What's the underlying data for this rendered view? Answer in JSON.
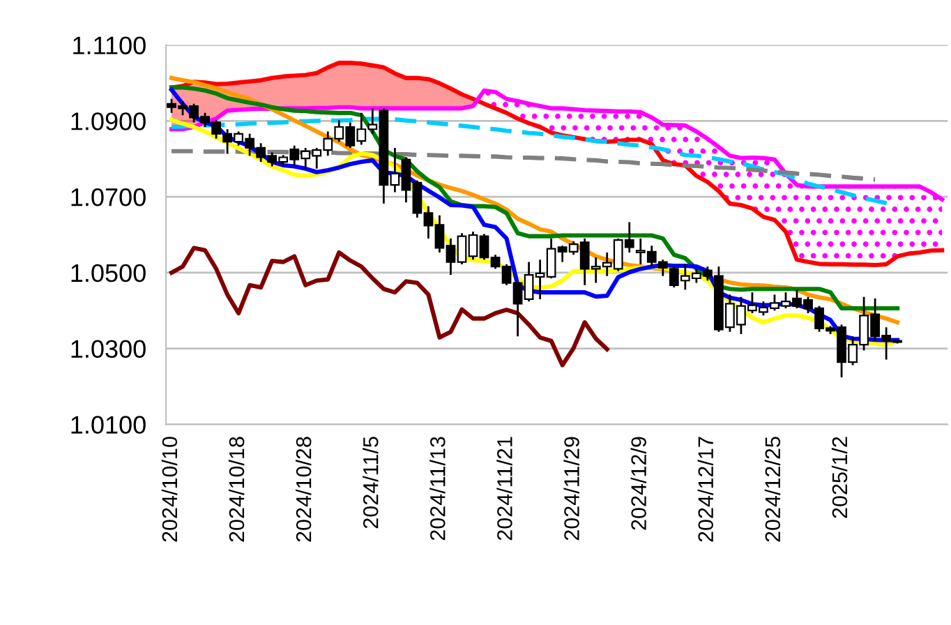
{
  "chart_data": {
    "type": "candlestick",
    "categories": [
      "2024/10/10",
      null,
      null,
      null,
      null,
      null,
      "2024/10/18",
      null,
      null,
      null,
      null,
      null,
      "2024/10/28",
      null,
      null,
      null,
      null,
      null,
      "2024/11/5",
      null,
      null,
      null,
      null,
      null,
      "2024/11/13",
      null,
      null,
      null,
      null,
      null,
      "2024/11/21",
      null,
      null,
      null,
      null,
      null,
      "2024/11/29",
      null,
      null,
      null,
      null,
      null,
      "2024/12/9",
      null,
      null,
      null,
      null,
      null,
      "2024/12/17",
      null,
      null,
      null,
      null,
      null,
      "2024/12/25",
      null,
      null,
      null,
      null,
      null,
      "2025/1/2",
      null,
      null,
      null,
      null,
      null,
      null,
      null,
      null,
      null
    ],
    "ohlc": [
      [
        1.0945,
        1.0958,
        1.0921,
        1.0936
      ],
      [
        1.0939,
        1.0952,
        1.0915,
        1.0933
      ],
      [
        1.0939,
        1.0945,
        1.0896,
        1.0909
      ],
      [
        1.0911,
        1.0921,
        1.0884,
        1.0896
      ],
      [
        1.0896,
        1.0902,
        1.0853,
        1.0866
      ],
      [
        1.0866,
        1.0878,
        1.0813,
        1.0845
      ],
      [
        1.0845,
        1.0872,
        1.0835,
        1.0866
      ],
      [
        1.0853,
        1.0866,
        1.0808,
        1.0829
      ],
      [
        1.0829,
        1.0841,
        1.0792,
        1.0804
      ],
      [
        1.0808,
        1.0817,
        1.078,
        1.0792
      ],
      [
        1.0792,
        1.081,
        1.078,
        1.0804
      ],
      [
        1.0825,
        1.0835,
        1.0783,
        1.0798
      ],
      [
        1.0801,
        1.0829,
        1.0774,
        1.082
      ],
      [
        1.0808,
        1.0829,
        1.0774,
        1.0823
      ],
      [
        1.0823,
        1.0872,
        1.0808,
        1.0853
      ],
      [
        1.0853,
        1.0902,
        1.0845,
        1.0884
      ],
      [
        1.0884,
        1.0896,
        1.0829,
        1.0835
      ],
      [
        1.0847,
        1.0921,
        1.0837,
        1.0878
      ],
      [
        1.0878,
        1.0933,
        1.0866,
        1.089
      ],
      [
        1.0927,
        1.0933,
        1.0682,
        1.0731
      ],
      [
        1.0731,
        1.0829,
        1.0712,
        1.0761
      ],
      [
        1.0798,
        1.0804,
        1.0685,
        1.0718
      ],
      [
        1.0737,
        1.0743,
        1.0645,
        1.0657
      ],
      [
        1.0657,
        1.0675,
        1.059,
        1.0624
      ],
      [
        1.0626,
        1.0651,
        1.0553,
        1.0565
      ],
      [
        1.0571,
        1.059,
        1.0494,
        1.0528
      ],
      [
        1.0528,
        1.0604,
        1.0522,
        1.0596
      ],
      [
        1.0543,
        1.0608,
        1.0534,
        1.0599
      ],
      [
        1.0596,
        1.0602,
        1.0534,
        1.054
      ],
      [
        1.054,
        1.0547,
        1.051,
        1.0516
      ],
      [
        1.0516,
        1.0522,
        1.0467,
        1.0473
      ],
      [
        1.0473,
        1.0473,
        1.0332,
        1.0418
      ],
      [
        1.043,
        1.0528,
        1.0424,
        1.0494
      ],
      [
        1.0489,
        1.0534,
        1.043,
        1.0498
      ],
      [
        1.0489,
        1.059,
        1.0485,
        1.0563
      ],
      [
        1.0567,
        1.0571,
        1.0528,
        1.0555
      ],
      [
        1.0555,
        1.0583,
        1.0547,
        1.0575
      ],
      [
        1.058,
        1.059,
        1.0467,
        1.051
      ],
      [
        1.051,
        1.054,
        1.0473,
        1.0516
      ],
      [
        1.0516,
        1.0553,
        1.0491,
        1.0526
      ],
      [
        1.051,
        1.059,
        1.0504,
        1.0586
      ],
      [
        1.0586,
        1.0633,
        1.0553,
        1.0567
      ],
      [
        1.0553,
        1.059,
        1.0522,
        1.0558
      ],
      [
        1.0555,
        1.0571,
        1.0516,
        1.0528
      ],
      [
        1.0528,
        1.0534,
        1.0491,
        1.0513
      ],
      [
        1.051,
        1.0516,
        1.0461,
        1.0467
      ],
      [
        1.0479,
        1.0522,
        1.0455,
        1.0491
      ],
      [
        1.0485,
        1.051,
        1.0473,
        1.0498
      ],
      [
        1.0506,
        1.0516,
        1.0479,
        1.0491
      ],
      [
        1.0491,
        1.0516,
        1.0344,
        1.035
      ],
      [
        1.0356,
        1.0442,
        1.0344,
        1.0418
      ],
      [
        1.0363,
        1.0436,
        1.0338,
        1.0412
      ],
      [
        1.04,
        1.0448,
        1.0393,
        1.0414
      ],
      [
        1.0396,
        1.0424,
        1.0387,
        1.0408
      ],
      [
        1.0406,
        1.0442,
        1.04,
        1.042
      ],
      [
        1.0412,
        1.0448,
        1.0406,
        1.0424
      ],
      [
        1.0432,
        1.0455,
        1.0406,
        1.0412
      ],
      [
        1.0428,
        1.0436,
        1.0393,
        1.0406
      ],
      [
        1.0406,
        1.0412,
        1.0344,
        1.0353
      ],
      [
        1.0354,
        1.0359,
        1.0338,
        1.0347
      ],
      [
        1.0356,
        1.0363,
        1.0224,
        1.0264
      ],
      [
        1.0264,
        1.0332,
        1.0256,
        1.031
      ],
      [
        1.031,
        1.0436,
        1.0295,
        1.0387
      ],
      [
        1.039,
        1.0432,
        1.032,
        1.0332
      ],
      [
        1.0334,
        1.0356,
        1.0271,
        1.0322
      ],
      [
        1.032,
        1.0322,
        1.0313,
        1.0317
      ],
      null,
      null,
      null,
      null
    ],
    "series": [
      {
        "type": "line",
        "color": "#ff0000",
        "line_style": "solid",
        "lower": [
          1.0878,
          1.0878,
          1.0884,
          1.0896,
          1.0906,
          1.0927,
          1.0929,
          1.0931,
          1.0932,
          1.0932,
          1.0933,
          1.0933,
          1.0933,
          1.0934,
          1.0934,
          1.0936,
          1.0936,
          1.0933,
          1.0933,
          1.0933,
          1.0933,
          1.0933,
          1.0933,
          1.0933,
          1.0933,
          1.0933,
          1.0933,
          1.0939,
          null,
          null,
          null,
          null,
          null,
          null,
          null,
          null,
          null,
          null,
          null,
          null,
          null,
          null,
          null,
          null,
          null,
          null,
          null,
          null,
          null,
          null,
          null,
          null,
          null,
          null,
          null,
          null,
          null,
          null,
          null,
          null,
          null,
          null,
          null,
          null,
          null,
          null,
          null,
          null,
          null,
          null
        ],
        "upper": [
          1.0988,
          1.0992,
          1.1003,
          1.1001,
          1.0997,
          1.0998,
          1.1001,
          1.1004,
          1.1007,
          1.1013,
          1.1017,
          1.1019,
          1.1021,
          1.1026,
          1.1041,
          1.1053,
          1.1053,
          1.1051,
          1.1046,
          1.1041,
          1.1025,
          1.1013,
          1.1013,
          1.101,
          1.0999,
          1.0985,
          1.097,
          1.0958,
          null,
          null,
          null,
          null,
          null,
          null,
          null,
          null,
          null,
          null,
          null,
          null,
          null,
          null,
          null,
          null,
          null,
          null,
          null,
          null,
          null,
          null,
          null,
          null,
          null,
          null,
          null,
          null,
          null,
          null,
          null,
          null,
          null,
          null,
          null,
          null,
          null,
          null,
          null,
          null,
          null,
          null
        ],
        "values": [
          1.0988,
          1.0992,
          1.1003,
          1.1001,
          1.0997,
          1.0998,
          1.1001,
          1.1004,
          1.1007,
          1.1013,
          1.1017,
          1.1019,
          1.1021,
          1.1026,
          1.1041,
          1.1053,
          1.1053,
          1.1051,
          1.1046,
          1.1041,
          1.1025,
          1.1013,
          1.1013,
          1.101,
          1.0999,
          1.0985,
          1.097,
          1.0958,
          1.0945,
          1.0933,
          1.0921,
          1.0906,
          1.0894,
          1.0884,
          1.0869,
          1.0862,
          1.0857,
          1.0852,
          1.0847,
          1.0845,
          1.0847,
          1.085,
          1.085,
          1.0839,
          1.0796,
          1.0786,
          1.0783,
          1.0755,
          1.0739,
          1.0715,
          1.0682,
          1.0678,
          1.0669,
          1.0647,
          1.0639,
          1.0608,
          1.0534,
          1.0528,
          1.0523,
          1.0522,
          1.0522,
          1.0521,
          1.0521,
          1.052,
          1.0522,
          1.0543,
          1.055,
          1.0553,
          1.0558,
          1.0559
        ]
      },
      {
        "type": "line",
        "color": "#ff00ff",
        "line_style": "solid",
        "lower": [
          null,
          null,
          null,
          null,
          null,
          null,
          null,
          null,
          null,
          null,
          null,
          null,
          null,
          null,
          null,
          null,
          null,
          null,
          null,
          null,
          null,
          null,
          null,
          null,
          null,
          null,
          null,
          null,
          1.098,
          1.0976,
          1.0958,
          1.0952,
          1.0945,
          1.0939,
          1.0933,
          1.0933,
          1.0931,
          1.0928,
          1.0927,
          1.0926,
          1.0925,
          1.0925,
          1.0923,
          1.0909,
          1.089,
          1.0889,
          1.0888,
          1.0872,
          1.0853,
          1.0831,
          1.0808,
          1.0802,
          1.0803,
          1.0802,
          1.0798,
          1.0761,
          1.0731,
          1.0727,
          1.0727,
          1.0727,
          1.0727,
          1.0727,
          1.0727,
          1.0727,
          1.0727,
          1.0727,
          1.0727,
          1.0727,
          1.0712,
          1.0693
        ],
        "upper": [
          null,
          null,
          null,
          null,
          null,
          null,
          null,
          null,
          null,
          null,
          null,
          null,
          null,
          null,
          null,
          null,
          null,
          null,
          null,
          null,
          null,
          null,
          null,
          null,
          null,
          null,
          null,
          null,
          1.0945,
          1.0933,
          1.0921,
          1.0906,
          1.0894,
          1.0884,
          1.0869,
          1.0862,
          1.0857,
          1.0852,
          1.0847,
          1.0845,
          1.0847,
          1.085,
          1.085,
          1.0839,
          1.0796,
          1.0786,
          1.0783,
          1.0755,
          1.0739,
          1.0715,
          1.0682,
          1.0678,
          1.0669,
          1.0647,
          1.0639,
          1.0608,
          1.0534,
          1.0528,
          1.0523,
          1.0522,
          1.0522,
          1.0521,
          1.0521,
          1.052,
          1.0522,
          1.0543,
          1.055,
          1.0553,
          1.0558,
          1.0559
        ],
        "values": [
          1.0878,
          1.0878,
          1.0884,
          1.0896,
          1.0906,
          1.0927,
          1.0929,
          1.0931,
          1.0932,
          1.0932,
          1.0933,
          1.0933,
          1.0933,
          1.0934,
          1.0934,
          1.0936,
          1.0936,
          1.0933,
          1.0933,
          1.0933,
          1.0933,
          1.0933,
          1.0933,
          1.0933,
          1.0933,
          1.0933,
          1.0933,
          1.0939,
          1.098,
          1.0976,
          1.0958,
          1.0952,
          1.0945,
          1.0939,
          1.0933,
          1.0933,
          1.0931,
          1.0928,
          1.0927,
          1.0926,
          1.0925,
          1.0925,
          1.0923,
          1.0909,
          1.089,
          1.0889,
          1.0888,
          1.0872,
          1.0853,
          1.0831,
          1.0808,
          1.0802,
          1.0803,
          1.0802,
          1.0798,
          1.0761,
          1.0731,
          1.0727,
          1.0727,
          1.0727,
          1.0727,
          1.0727,
          1.0727,
          1.0727,
          1.0727,
          1.0727,
          1.0727,
          1.0727,
          1.0712,
          1.0693
        ]
      },
      {
        "type": "line",
        "color": "#00ccff",
        "line_style": "dashed",
        "values": [
          1.0884,
          1.0885,
          1.0887,
          1.0888,
          1.0889,
          1.089,
          1.0891,
          1.0893,
          1.0894,
          1.0895,
          1.0896,
          1.0898,
          1.0899,
          1.09,
          1.0901,
          1.0901,
          1.0902,
          1.0905,
          1.0905,
          1.0905,
          1.0904,
          1.0901,
          1.0899,
          1.0896,
          1.0893,
          1.089,
          1.0887,
          1.0884,
          1.088,
          1.0878,
          1.0874,
          1.0872,
          1.0868,
          1.0866,
          1.0862,
          1.0858,
          1.0855,
          1.0851,
          1.0847,
          1.0845,
          1.0841,
          1.0837,
          1.0835,
          1.083,
          1.0825,
          1.0818,
          1.081,
          1.0808,
          1.0804,
          1.0799,
          1.0793,
          1.0788,
          1.078,
          1.0772,
          1.0765,
          1.0759,
          1.0747,
          1.0734,
          1.0727,
          1.072,
          1.0712,
          1.0704,
          1.0696,
          1.069,
          1.0683,
          1.0675,
          null,
          null,
          null,
          null
        ]
      },
      {
        "type": "line",
        "color": "#808080",
        "line_style": "dashed",
        "values": [
          1.082,
          1.082,
          1.082,
          1.0819,
          1.0819,
          1.0819,
          1.0819,
          1.0818,
          1.0818,
          1.0818,
          1.0818,
          1.0817,
          1.0817,
          1.0817,
          1.0817,
          1.0815,
          1.0815,
          1.0814,
          1.0814,
          1.0813,
          1.0812,
          1.0812,
          1.081,
          1.081,
          1.0809,
          1.0808,
          1.0808,
          1.0807,
          1.0806,
          1.0806,
          1.0804,
          1.0803,
          1.0803,
          1.0802,
          1.0802,
          1.0801,
          1.0799,
          1.0797,
          1.0796,
          1.0793,
          1.0792,
          1.0791,
          1.0788,
          1.0787,
          1.0786,
          1.0783,
          1.0782,
          1.0781,
          1.0779,
          1.0777,
          1.0776,
          1.0774,
          1.0771,
          1.0769,
          1.0766,
          1.0764,
          1.0761,
          1.076,
          1.0758,
          1.0755,
          1.0753,
          1.075,
          1.0748,
          1.0745,
          null,
          null,
          null,
          null,
          null,
          null
        ]
      },
      {
        "type": "line",
        "color": "#800000",
        "line_style": "solid",
        "values": [
          1.05,
          1.0516,
          1.0565,
          1.0559,
          1.051,
          1.0442,
          1.0393,
          1.0467,
          1.0461,
          1.0531,
          1.0528,
          1.0543,
          1.0467,
          1.0479,
          1.0482,
          1.0553,
          1.0532,
          1.0516,
          1.0485,
          1.0457,
          1.0448,
          1.0477,
          1.0473,
          1.0442,
          1.0329,
          1.0344,
          1.0403,
          1.0379,
          1.0379,
          1.0393,
          1.0402,
          1.0393,
          1.0363,
          1.0329,
          1.032,
          1.0256,
          1.0301,
          1.0369,
          1.0326,
          1.0298,
          null,
          null,
          null,
          null,
          null,
          null,
          null,
          null,
          null,
          null,
          null,
          null,
          null,
          null,
          null,
          null,
          null,
          null,
          null,
          null,
          null,
          null,
          null,
          null,
          null,
          null,
          null,
          null,
          null,
          null
        ]
      },
      {
        "type": "line",
        "color": "#ff9900",
        "line_style": "solid",
        "values": [
          1.1013,
          1.1007,
          1.1002,
          1.0994,
          1.0986,
          1.0976,
          1.0966,
          1.0957,
          1.0944,
          1.0931,
          1.0916,
          1.0901,
          1.0887,
          1.0872,
          1.0857,
          1.0844,
          1.0825,
          1.081,
          1.0803,
          1.0793,
          1.0785,
          1.0771,
          1.0756,
          1.0743,
          1.0732,
          1.0723,
          1.0715,
          1.0705,
          1.0693,
          1.0682,
          1.0666,
          1.0642,
          1.0629,
          1.0614,
          1.0608,
          1.059,
          1.0575,
          1.0559,
          1.0543,
          1.0534,
          1.0526,
          1.052,
          1.0516,
          1.0512,
          1.0509,
          1.0504,
          1.05,
          1.0495,
          1.0489,
          1.0482,
          1.0474,
          1.0469,
          1.0467,
          1.0466,
          1.0463,
          1.0461,
          1.0455,
          1.0442,
          1.0435,
          1.043,
          1.0418,
          1.0406,
          1.0396,
          1.0387,
          1.0379,
          1.0369,
          null,
          null,
          null,
          null
        ]
      },
      {
        "type": "line",
        "color": "#008000",
        "line_style": "solid",
        "values": [
          1.0988,
          1.0988,
          1.0985,
          1.098,
          1.0972,
          1.096,
          1.0954,
          1.0948,
          1.0943,
          1.0936,
          1.0931,
          1.0927,
          1.0926,
          1.0923,
          1.0922,
          1.0921,
          1.0921,
          1.0915,
          1.0872,
          1.0823,
          1.0808,
          1.0798,
          1.0767,
          1.0743,
          1.0725,
          1.0688,
          1.0678,
          1.0675,
          1.0675,
          1.0673,
          1.0657,
          1.0604,
          1.0596,
          1.0596,
          1.0596,
          1.0598,
          1.0598,
          1.0598,
          1.0598,
          1.0598,
          1.0598,
          1.0598,
          1.0598,
          1.0598,
          1.059,
          1.0547,
          1.0538,
          1.051,
          1.0485,
          1.0464,
          1.0457,
          1.0455,
          1.0457,
          1.0457,
          1.0457,
          1.0457,
          1.0457,
          1.0457,
          1.0457,
          1.0448,
          1.0406,
          1.0406,
          1.0406,
          1.0406,
          1.0406,
          1.0406,
          null,
          null,
          null,
          null
        ]
      },
      {
        "type": "line",
        "color": "#ffff00",
        "line_style": "solid",
        "values": [
          1.0902,
          1.0893,
          1.0884,
          1.0872,
          1.0857,
          1.0842,
          1.0828,
          1.0813,
          1.0798,
          1.078,
          1.077,
          1.0758,
          1.0755,
          1.0759,
          1.0766,
          1.078,
          1.0804,
          1.0814,
          1.081,
          1.0796,
          1.078,
          1.0749,
          1.0706,
          1.0657,
          1.0614,
          1.0571,
          1.054,
          1.0533,
          1.0531,
          1.0527,
          1.051,
          1.0485,
          1.0461,
          1.046,
          1.0464,
          1.0479,
          1.0504,
          1.0504,
          1.0504,
          1.0504,
          1.0506,
          1.051,
          1.0513,
          1.0516,
          1.0513,
          1.0506,
          1.0501,
          1.0494,
          1.0479,
          1.0448,
          1.0424,
          1.0402,
          1.0381,
          1.0369,
          1.0379,
          1.0387,
          1.0387,
          1.0381,
          1.0371,
          1.035,
          1.0326,
          1.032,
          1.0317,
          1.0313,
          1.031,
          1.032,
          null,
          null,
          null,
          null
        ]
      },
      {
        "type": "line",
        "color": "#0000ff",
        "line_style": "solid",
        "values": [
          1.0982,
          1.0945,
          1.0911,
          1.0896,
          1.0887,
          1.0857,
          1.0845,
          1.0833,
          1.0813,
          1.0792,
          1.0783,
          1.078,
          1.0774,
          1.0765,
          1.077,
          1.0777,
          1.0786,
          1.0792,
          1.0796,
          1.0764,
          1.0761,
          1.0755,
          1.0734,
          1.0716,
          1.0698,
          1.0678,
          1.0677,
          1.0673,
          1.0626,
          1.062,
          1.059,
          1.0467,
          1.0452,
          1.0448,
          1.0448,
          1.0448,
          1.0448,
          1.0448,
          1.0437,
          1.0439,
          1.0488,
          1.0501,
          1.051,
          1.0516,
          1.052,
          1.0518,
          1.0518,
          1.0516,
          1.0504,
          1.0448,
          1.0434,
          1.0428,
          1.0417,
          1.0414,
          1.0415,
          1.0418,
          1.0415,
          1.0406,
          1.039,
          1.0375,
          1.0334,
          1.0326,
          1.0325,
          1.0323,
          1.0322,
          1.0322,
          null,
          null,
          null,
          null
        ]
      }
    ],
    "ylim": [
      1.01,
      1.11
    ],
    "yticks": [
      {
        "value": 1.01,
        "label": "1.0100"
      },
      {
        "value": 1.03,
        "label": "1.0300"
      },
      {
        "value": 1.05,
        "label": "1.0500"
      },
      {
        "value": 1.07,
        "label": "1.0700"
      },
      {
        "value": 1.09,
        "label": "1.0900"
      },
      {
        "value": 1.11,
        "label": "1.1100"
      }
    ],
    "grid": "y",
    "marker": "none"
  }
}
